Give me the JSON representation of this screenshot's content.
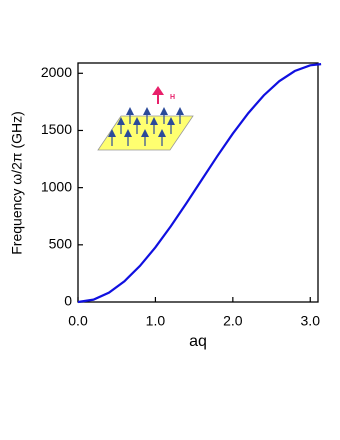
{
  "chart_data": {
    "type": "line",
    "x_label": "aq",
    "y_label": "Frequency  ω/2π  (GHz)",
    "annotation": "H",
    "x": [
      0,
      0.2,
      0.4,
      0.6,
      0.8,
      1.0,
      1.2,
      1.4,
      1.6,
      1.8,
      2.0,
      2.2,
      2.4,
      2.6,
      2.8,
      3.0,
      3.14
    ],
    "series": [
      {
        "color": "#1010e0",
        "values": [
          0,
          20.7,
          82.1,
          181.6,
          315.4,
          478.1,
          663.1,
          863.2,
          1070.4,
          1276.3,
          1472.8,
          1652.0,
          1806.9,
          1931.2,
          2019.9,
          2069.6,
          2080
        ]
      }
    ],
    "xlim": [
      0,
      3.1
    ],
    "ylim": [
      0,
      2090
    ],
    "xticks": [
      {
        "value": 0,
        "label": "0.0"
      },
      {
        "value": 1,
        "label": "1.0"
      },
      {
        "value": 2,
        "label": "2.0"
      },
      {
        "value": 3,
        "label": "3.0"
      }
    ],
    "yticks": [
      0,
      500,
      1000,
      1500,
      2000
    ]
  }
}
